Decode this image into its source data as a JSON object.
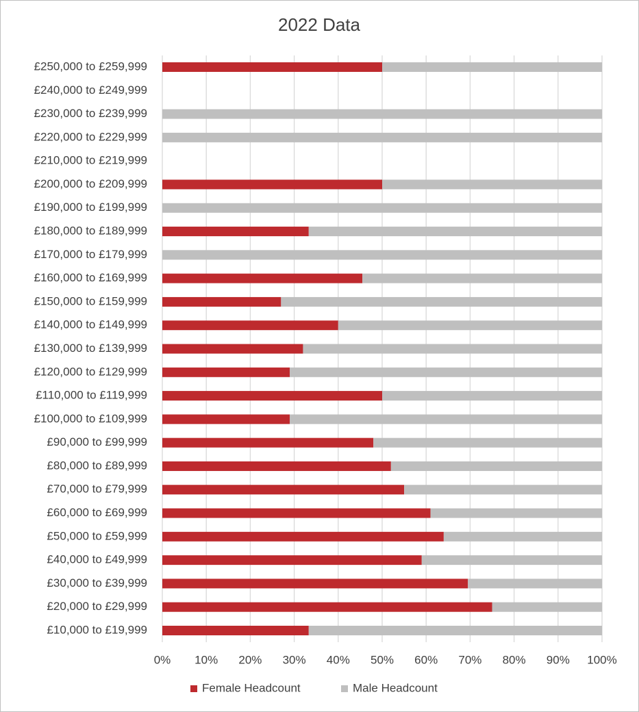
{
  "chart_data": {
    "type": "stacked-bar-horizontal",
    "title": "2022 Data",
    "categories": [
      "£250,000 to £259,999",
      "£240,000 to £249,999",
      "£230,000 to £239,999",
      "£220,000 to £229,999",
      "£210,000 to £219,999",
      "£200,000 to £209,999",
      "£190,000 to £199,999",
      "£180,000 to £189,999",
      "£170,000 to £179,999",
      "£160,000 to £169,999",
      "£150,000 to £159,999",
      "£140,000 to £149,999",
      "£130,000 to £139,999",
      "£120,000 to £129,999",
      "£110,000 to £119,999",
      "£100,000 to £109,999",
      "£90,000 to £99,999",
      "£80,000 to £89,999",
      "£70,000 to £79,999",
      "£60,000 to £69,999",
      "£50,000 to £59,999",
      "£40,000 to £49,999",
      "£30,000 to £39,999",
      "£20,000 to £29,999",
      "£10,000 to £19,999"
    ],
    "series": [
      {
        "name": "Female Headcount",
        "color": "#be2a2e",
        "values": [
          50,
          null,
          0,
          0,
          null,
          50,
          0,
          33.3,
          0,
          45.5,
          27,
          40,
          32,
          29,
          50,
          29,
          48,
          52,
          55,
          61,
          64,
          59,
          69.5,
          75,
          33.3
        ]
      },
      {
        "name": "Male Headcount",
        "color": "#bfbfbf",
        "values": [
          50,
          null,
          100,
          100,
          null,
          50,
          100,
          66.7,
          100,
          54.5,
          73,
          60,
          68,
          71,
          50,
          71,
          52,
          48,
          45,
          39,
          36,
          41,
          30.5,
          25,
          66.7
        ]
      }
    ],
    "xlim": [
      0,
      100
    ],
    "xticks": [
      {
        "value": 0,
        "label": "0%"
      },
      {
        "value": 10,
        "label": "10%"
      },
      {
        "value": 20,
        "label": "20%"
      },
      {
        "value": 30,
        "label": "30%"
      },
      {
        "value": 40,
        "label": "40%"
      },
      {
        "value": 50,
        "label": "50%"
      },
      {
        "value": 60,
        "label": "60%"
      },
      {
        "value": 70,
        "label": "70%"
      },
      {
        "value": 80,
        "label": "80%"
      },
      {
        "value": 90,
        "label": "90%"
      },
      {
        "value": 100,
        "label": "100%"
      }
    ],
    "grid": true,
    "legend": "bottom"
  }
}
